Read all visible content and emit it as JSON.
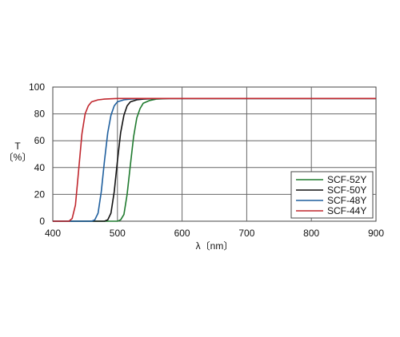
{
  "chart_data": {
    "type": "line",
    "xlabel": "λ〔nm〕",
    "ylabel": "T\n〔%〕",
    "xlim": [
      400,
      900
    ],
    "ylim": [
      0,
      100
    ],
    "x_ticks": [
      400,
      500,
      600,
      700,
      800,
      900
    ],
    "y_ticks": [
      0,
      20,
      40,
      60,
      80,
      100
    ],
    "grid": true,
    "legend_position": "bottom-right inside plot",
    "series": [
      {
        "name": "SCF-52Y",
        "color": "#1f7a2e",
        "x": [
          400,
          500,
          505,
          510,
          515,
          520,
          525,
          530,
          535,
          540,
          550,
          560,
          580,
          600,
          700,
          800,
          900
        ],
        "y": [
          0,
          0,
          1,
          5,
          20,
          42,
          63,
          77,
          84,
          88,
          90,
          91,
          91.5,
          91.5,
          91.5,
          91.5,
          91.5
        ]
      },
      {
        "name": "SCF-50Y",
        "color": "#111111",
        "x": [
          400,
          480,
          485,
          490,
          495,
          500,
          505,
          510,
          515,
          520,
          530,
          540,
          560,
          600,
          700,
          800,
          900
        ],
        "y": [
          0,
          0,
          1,
          6,
          22,
          45,
          66,
          79,
          86,
          89,
          90.5,
          91,
          91.5,
          91.5,
          91.5,
          91.5,
          91.5
        ]
      },
      {
        "name": "SCF-48Y",
        "color": "#1f5f9e",
        "x": [
          400,
          460,
          465,
          470,
          475,
          480,
          485,
          490,
          495,
          500,
          510,
          520,
          540,
          600,
          700,
          800,
          900
        ],
        "y": [
          0,
          0,
          1,
          6,
          22,
          45,
          66,
          79,
          86,
          89,
          90.5,
          91,
          91.5,
          91.5,
          91.5,
          91.5,
          91.5
        ]
      },
      {
        "name": "SCF-44Y",
        "color": "#c0262d",
        "x": [
          400,
          425,
          430,
          435,
          440,
          445,
          450,
          455,
          460,
          470,
          480,
          500,
          600,
          700,
          800,
          900
        ],
        "y": [
          0,
          0,
          2,
          12,
          38,
          65,
          80,
          86,
          89,
          90.5,
          91,
          91.5,
          91.5,
          91.5,
          91.5,
          91.5
        ]
      }
    ]
  }
}
